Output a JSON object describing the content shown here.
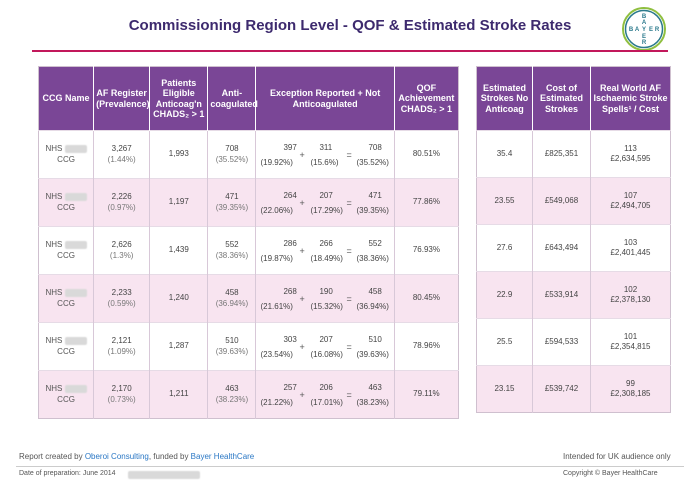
{
  "title": "Commissioning Region Level - QOF & Estimated Stroke Rates",
  "logo": {
    "letters_top": "BAYER",
    "letters_side": "BAYER",
    "color": "#2b7a8c"
  },
  "colors": {
    "header_purple": "#7a4696",
    "rule_magenta": "#c2185b",
    "row_pink": "#f8e4f0",
    "link_blue": "#2b78c5"
  },
  "table1": {
    "headers": {
      "ccg": "CCG Name",
      "af": "AF Register (Prevalence)",
      "elig": "Patients Eligible Anticoag'n CHADS₂ > 1",
      "anti": "Anti-coagulated",
      "exc": "Exception Reported + Not Anticoagulated",
      "qof": "QOF Achievement CHADS₂ > 1"
    },
    "rows": [
      {
        "ccg_prefix": "NHS",
        "ccg_suffix": "CCG",
        "af_n": "3,267",
        "af_p": "(1.44%)",
        "elig": "1,993",
        "anti_n": "708",
        "anti_p": "(35.52%)",
        "e1": "397",
        "e1p": "(19.92%)",
        "e2": "311",
        "e2p": "(15.6%)",
        "e3": "708",
        "e3p": "(35.52%)",
        "qof": "80.51%"
      },
      {
        "ccg_prefix": "NHS",
        "ccg_suffix": "CCG",
        "af_n": "2,226",
        "af_p": "(0.97%)",
        "elig": "1,197",
        "anti_n": "471",
        "anti_p": "(39.35%)",
        "e1": "264",
        "e1p": "(22.06%)",
        "e2": "207",
        "e2p": "(17.29%)",
        "e3": "471",
        "e3p": "(39.35%)",
        "qof": "77.86%"
      },
      {
        "ccg_prefix": "NHS",
        "ccg_suffix": "CCG",
        "af_n": "2,626",
        "af_p": "(1.3%)",
        "elig": "1,439",
        "anti_n": "552",
        "anti_p": "(38.36%)",
        "e1": "286",
        "e1p": "(19.87%)",
        "e2": "266",
        "e2p": "(18.49%)",
        "e3": "552",
        "e3p": "(38.36%)",
        "qof": "76.93%"
      },
      {
        "ccg_prefix": "NHS",
        "ccg_suffix": "CCG",
        "af_n": "2,233",
        "af_p": "(0.59%)",
        "elig": "1,240",
        "anti_n": "458",
        "anti_p": "(36.94%)",
        "e1": "268",
        "e1p": "(21.61%)",
        "e2": "190",
        "e2p": "(15.32%)",
        "e3": "458",
        "e3p": "(36.94%)",
        "qof": "80.45%"
      },
      {
        "ccg_prefix": "NHS",
        "ccg_suffix": "CCG",
        "af_n": "2,121",
        "af_p": "(1.09%)",
        "elig": "1,287",
        "anti_n": "510",
        "anti_p": "(39.63%)",
        "e1": "303",
        "e1p": "(23.54%)",
        "e2": "207",
        "e2p": "(16.08%)",
        "e3": "510",
        "e3p": "(39.63%)",
        "qof": "78.96%"
      },
      {
        "ccg_prefix": "NHS",
        "ccg_suffix": "CCG",
        "af_n": "2,170",
        "af_p": "(0.73%)",
        "elig": "1,211",
        "anti_n": "463",
        "anti_p": "(38.23%)",
        "e1": "257",
        "e1p": "(21.22%)",
        "e2": "206",
        "e2p": "(17.01%)",
        "e3": "463",
        "e3p": "(38.23%)",
        "qof": "79.11%"
      }
    ]
  },
  "table2": {
    "headers": {
      "est": "Estimated Strokes No Anticoag",
      "cost": "Cost of Estimated Strokes",
      "rw": "Real World AF Ischaemic Stroke Spells¹ / Cost"
    },
    "rows": [
      {
        "est": "35.4",
        "cost": "£825,351",
        "rw_n": "113",
        "rw_c": "£2,634,595"
      },
      {
        "est": "23.55",
        "cost": "£549,068",
        "rw_n": "107",
        "rw_c": "£2,494,705"
      },
      {
        "est": "27.6",
        "cost": "£643,494",
        "rw_n": "103",
        "rw_c": "£2,401,445"
      },
      {
        "est": "22.9",
        "cost": "£533,914",
        "rw_n": "102",
        "rw_c": "£2,378,130"
      },
      {
        "est": "25.5",
        "cost": "£594,533",
        "rw_n": "101",
        "rw_c": "£2,354,815"
      },
      {
        "est": "23.15",
        "cost": "£539,742",
        "rw_n": "99",
        "rw_c": "£2,308,185"
      }
    ]
  },
  "footer": {
    "report_pre": "Report created by ",
    "report_org": "Oberoi Consulting",
    "report_mid": ", funded by ",
    "report_funder": "Bayer HealthCare",
    "date": "Date of preparation: June 2014",
    "audience": "Intended for UK audience only",
    "copyright": "Copyright © Bayer HealthCare"
  }
}
